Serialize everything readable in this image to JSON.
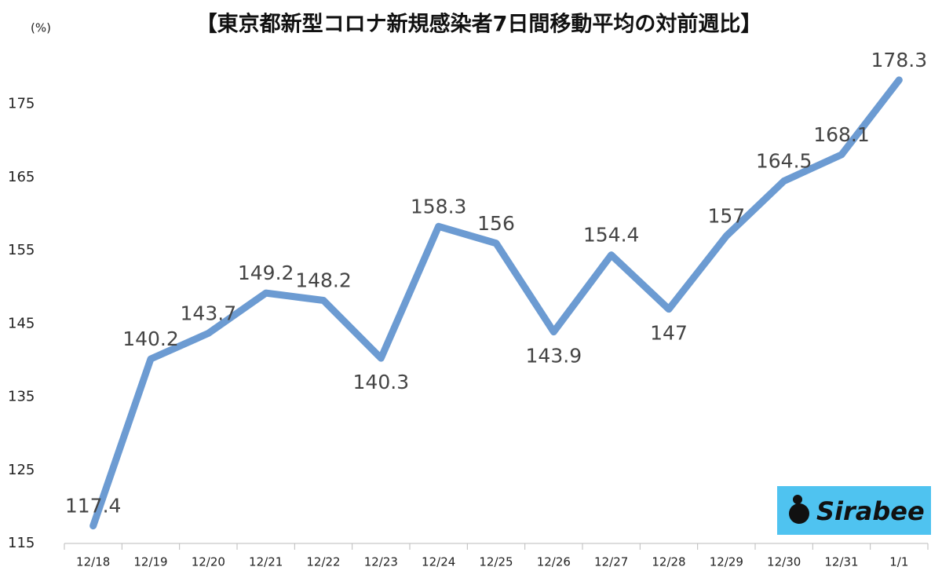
{
  "chart_data": {
    "type": "line",
    "title": "【東京都新型コロナ新規感染者7日間移動平均の対前週比】",
    "y_label": "(%)",
    "categories": [
      "12/18",
      "12/19",
      "12/20",
      "12/21",
      "12/22",
      "12/23",
      "12/24",
      "12/25",
      "12/26",
      "12/27",
      "12/28",
      "12/29",
      "12/30",
      "12/31",
      "1/1"
    ],
    "series": [
      {
        "name": "対前週比",
        "color": "#6c9bd2",
        "values": [
          117.4,
          140.2,
          143.7,
          149.2,
          148.2,
          140.3,
          158.3,
          156,
          143.9,
          154.4,
          147,
          157,
          164.5,
          168.1,
          178.3
        ]
      }
    ],
    "ylim": [
      115,
      180
    ],
    "yticks": [
      115,
      125,
      135,
      145,
      155,
      165,
      175
    ],
    "grid": false,
    "watermark": "Sirabee"
  }
}
